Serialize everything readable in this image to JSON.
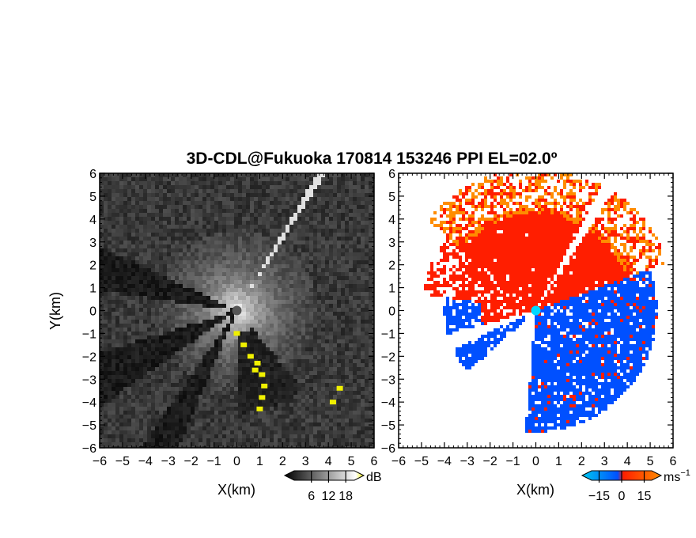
{
  "chart_data": {
    "type": "heatmap",
    "title": "3D-CDL@Fukuoka 170814 153246 PPI EL=02.0º",
    "panels": [
      {
        "field": "reflectivity",
        "xlabel": "X(km)",
        "ylabel": "Y(km)",
        "xlim": [
          -6,
          6
        ],
        "ylim": [
          -6,
          6
        ],
        "xticks": [
          "−6",
          "−5",
          "−4",
          "−3",
          "−2",
          "−1",
          "0",
          "1",
          "2",
          "3",
          "4",
          "5",
          "6"
        ],
        "yticks": [
          "−6",
          "−5",
          "−4",
          "−3",
          "−2",
          "−1",
          "0",
          "1",
          "2",
          "3",
          "4",
          "5",
          "6"
        ],
        "colorbar": {
          "unit": "dB",
          "ticks": [
            "6",
            "12",
            "18"
          ],
          "range": [
            0,
            21
          ],
          "colors": [
            "#000000",
            "#ffffff",
            "#f0f000"
          ]
        },
        "highlight_color": "#f0f000"
      },
      {
        "field": "doppler_velocity",
        "xlabel": "X(km)",
        "xlim": [
          -6,
          6
        ],
        "ylim": [
          -6,
          6
        ],
        "xticks": [
          "−6",
          "−5",
          "−4",
          "−3",
          "−2",
          "−1",
          "0",
          "1",
          "2",
          "3",
          "4",
          "5",
          "6"
        ],
        "colorbar": {
          "unit": "ms",
          "unit_exp": "−1",
          "ticks": [
            "−15",
            "0",
            "15"
          ],
          "range": [
            -20,
            20
          ],
          "colors": [
            "#00c8f0",
            "#0050ff",
            "#ff1e00",
            "#ff8c00"
          ]
        },
        "radar_marker_color": "#00d8ff"
      }
    ],
    "grid": false,
    "legend": "colorbars below each panel"
  }
}
